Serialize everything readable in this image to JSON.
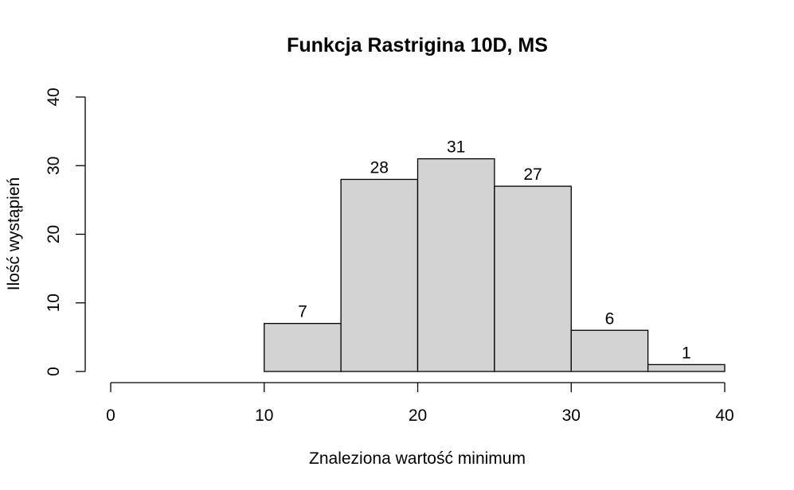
{
  "chart_data": {
    "type": "bar",
    "title": "Funkcja Rastrigina 10D, MS",
    "xlabel": "Znaleziona wartość minimum",
    "ylabel": "Ilość wystąpień",
    "bins": [
      {
        "start": 10,
        "end": 15,
        "count": 7
      },
      {
        "start": 15,
        "end": 20,
        "count": 28
      },
      {
        "start": 20,
        "end": 25,
        "count": 31
      },
      {
        "start": 25,
        "end": 30,
        "count": 27
      },
      {
        "start": 30,
        "end": 35,
        "count": 6
      },
      {
        "start": 35,
        "end": 40,
        "count": 1
      }
    ],
    "xlim": [
      0,
      40
    ],
    "ylim": [
      0,
      40
    ],
    "xticks": [
      "0",
      "10",
      "20",
      "30",
      "40"
    ],
    "yticks": [
      "0",
      "10",
      "20",
      "30",
      "40"
    ],
    "grid": false,
    "legend": "none",
    "bar_color": "#d3d3d3"
  }
}
